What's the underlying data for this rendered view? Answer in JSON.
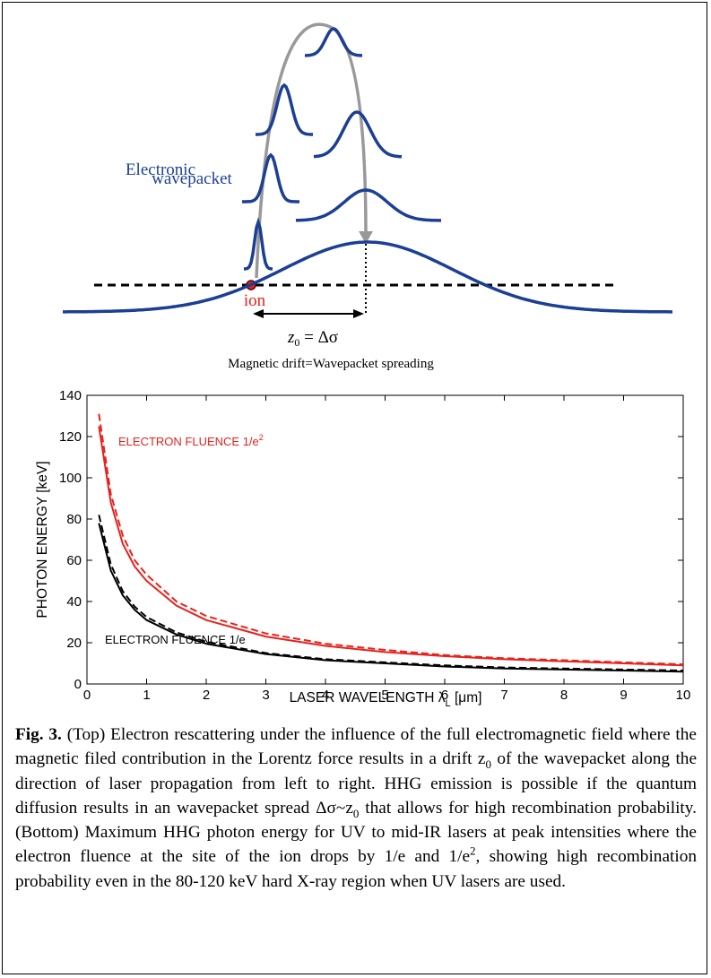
{
  "diagram": {
    "label_lines": [
      "Electronic",
      "wavepacket"
    ],
    "ion": "ion",
    "drift": {
      "text": "z",
      "sub": "0",
      "rest": " = Δσ"
    },
    "subtitle": "Magnetic drift=Wavepacket spreading"
  },
  "chart_data": {
    "type": "line",
    "x": [
      0.2,
      0.4,
      0.6,
      0.8,
      1,
      1.5,
      2,
      3,
      4,
      5,
      6,
      7,
      8,
      9,
      10
    ],
    "series": [
      {
        "color": "#e8211c",
        "dashed": false,
        "values": [
          125,
          88,
          68,
          57,
          50,
          38,
          31,
          23,
          18.5,
          15.5,
          13.5,
          12,
          11,
          10,
          9
        ]
      },
      {
        "color": "#e8211c",
        "dashed": true,
        "values": [
          131,
          92,
          72,
          60,
          53,
          40,
          33,
          24.5,
          19.5,
          16.5,
          14,
          12.5,
          11.5,
          10.5,
          9.5
        ]
      },
      {
        "color": "#000000",
        "dashed": false,
        "values": [
          78,
          55,
          43,
          36,
          31,
          24,
          19.5,
          14.5,
          11.5,
          10,
          8.5,
          7.5,
          7,
          6.5,
          6
        ]
      },
      {
        "color": "#000000",
        "dashed": true,
        "values": [
          82,
          58,
          45,
          37.5,
          32.5,
          25,
          20.5,
          15,
          12,
          10.5,
          9,
          8,
          7.5,
          7,
          6.5
        ]
      }
    ],
    "xlim": [
      0,
      10
    ],
    "ylim": [
      0,
      140
    ],
    "xticks": [
      0,
      1,
      2,
      3,
      4,
      5,
      6,
      7,
      8,
      9,
      10
    ],
    "yticks": [
      0,
      20,
      40,
      60,
      80,
      100,
      120,
      140
    ],
    "y_label": "PHOTON ENERGY [keV]",
    "x_label": {
      "text": "LASER WAVELENGTH λ",
      "sub": "L",
      "rest": " [μm]"
    },
    "annotations": [
      {
        "text": "ELECTRON FLUENCE 1/e",
        "sup": "2",
        "color": "#e8211c"
      },
      {
        "text": "ELECTRON FLUENCE 1/e",
        "color": "#000000"
      }
    ],
    "grid": false
  },
  "caption": {
    "label": "Fig. 3.",
    "runs": [
      {
        "text": " (Top) Electron rescattering under the influence of the full electromagnetic field where the magnetic filed contribution in the Lorentz force results in a drift z"
      },
      {
        "sub": "0"
      },
      {
        "text": " of the wavepacket along the direction of laser propagation from left to right. HHG emission is possible if the quantum diffusion results in an wavepacket spread Δσ~z"
      },
      {
        "sub": "0"
      },
      {
        "text": " that allows for high recombination probability. (Bottom) Maximum HHG photon energy for UV to mid-IR lasers at peak intensities where the electron fluence at the site of the ion drops by 1/e and 1/e"
      },
      {
        "sup": "2"
      },
      {
        "text": ", showing high recombination probability even in the 80-120 keV hard X-ray region when UV lasers are used."
      }
    ]
  }
}
